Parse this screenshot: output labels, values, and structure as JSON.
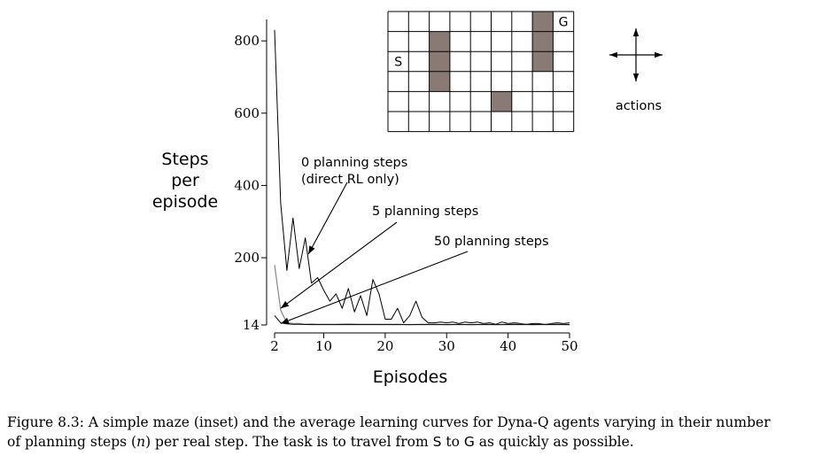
{
  "chart_data": {
    "type": "line",
    "xlabel": "Episodes",
    "ylabel_lines": [
      "Steps",
      "per",
      "episode"
    ],
    "xlim": [
      2,
      50
    ],
    "ylim": [
      14,
      820
    ],
    "x_ticks": [
      {
        "value": 2,
        "label": "2"
      },
      {
        "value": 10,
        "label": "10"
      },
      {
        "value": 20,
        "label": "20"
      },
      {
        "value": 30,
        "label": "30"
      },
      {
        "value": 40,
        "label": "40"
      },
      {
        "value": 50,
        "label": "50"
      }
    ],
    "y_ticks": [
      {
        "value": 14,
        "label": "14"
      },
      {
        "value": 200,
        "label": "200"
      },
      {
        "value": 400,
        "label": "400"
      },
      {
        "value": 600,
        "label": "600"
      },
      {
        "value": 800,
        "label": "800"
      }
    ],
    "series": [
      {
        "name": "0 planning steps (direct RL only)",
        "color": "#000000",
        "x": [
          2,
          3,
          4,
          5,
          6,
          7,
          8,
          9,
          10,
          11,
          12,
          13,
          14,
          15,
          16,
          17,
          18,
          19,
          20,
          21,
          22,
          23,
          24,
          25,
          26,
          27,
          28,
          29,
          30,
          31,
          32,
          33,
          34,
          35,
          36,
          37,
          38,
          39,
          40,
          41,
          42,
          43,
          44,
          45,
          46,
          47,
          48,
          49,
          50
        ],
        "y": [
          830,
          350,
          165,
          310,
          170,
          255,
          130,
          145,
          110,
          80,
          100,
          60,
          115,
          50,
          95,
          40,
          140,
          100,
          30,
          30,
          60,
          20,
          40,
          80,
          35,
          20,
          20,
          22,
          20,
          22,
          18,
          22,
          20,
          22,
          18,
          20,
          16,
          22,
          18,
          20,
          18,
          16,
          18,
          18,
          16,
          18,
          20,
          18,
          20
        ]
      },
      {
        "name": "5 planning steps",
        "color": "#888888",
        "x": [
          2,
          3,
          4,
          5,
          6,
          7,
          8,
          9,
          10,
          12,
          14,
          16,
          18,
          20,
          22,
          24,
          26,
          28,
          30,
          32,
          34,
          36,
          38,
          40,
          42,
          44,
          46,
          48,
          50
        ],
        "y": [
          180,
          55,
          20,
          18,
          18,
          16,
          17,
          16,
          16,
          16,
          17,
          16,
          16,
          16,
          16,
          15,
          16,
          16,
          15,
          16,
          15,
          16,
          15,
          16,
          16,
          15,
          16,
          16,
          15
        ]
      },
      {
        "name": "50 planning steps",
        "color": "#000000",
        "x": [
          2,
          3,
          4,
          5,
          6,
          8,
          10,
          12,
          14,
          16,
          18,
          20,
          22,
          24,
          26,
          28,
          30,
          32,
          34,
          36,
          38,
          40,
          42,
          44,
          46,
          48,
          50
        ],
        "y": [
          40,
          20,
          17,
          16,
          16,
          15,
          15,
          15,
          15,
          15,
          15,
          15,
          15,
          15,
          15,
          15,
          15,
          15,
          15,
          15,
          15,
          15,
          15,
          15,
          15,
          15,
          15
        ]
      }
    ],
    "annotations": [
      {
        "text_lines": [
          "0 planning steps",
          "(direct RL only)"
        ],
        "points_to": [
          7.5,
          210
        ]
      },
      {
        "text_lines": [
          "5 planning steps"
        ],
        "points_to": [
          3,
          60
        ]
      },
      {
        "text_lines": [
          "50 planning steps"
        ],
        "points_to": [
          3,
          18
        ]
      }
    ]
  },
  "maze": {
    "cols": 9,
    "rows": 6,
    "walls": [
      [
        7,
        0
      ],
      [
        7,
        1
      ],
      [
        7,
        2
      ],
      [
        2,
        1
      ],
      [
        2,
        2
      ],
      [
        2,
        3
      ],
      [
        5,
        4
      ]
    ],
    "start": {
      "col": 0,
      "row": 2,
      "label": "S"
    },
    "goal": {
      "col": 8,
      "row": 0,
      "label": "G"
    },
    "wall_color": "#8a7a76"
  },
  "actions_label": "actions",
  "caption": {
    "line1": "Figure 8.3: A simple maze (inset) and the average learning curves for Dyna-Q agents varying in their number",
    "line2_a": "of planning steps (",
    "line2_n": "n",
    "line2_b": ") per real step. The task is to travel from ",
    "line2_S": "S",
    "line2_c": " to ",
    "line2_G": "G",
    "line2_d": " as quickly as possible."
  }
}
